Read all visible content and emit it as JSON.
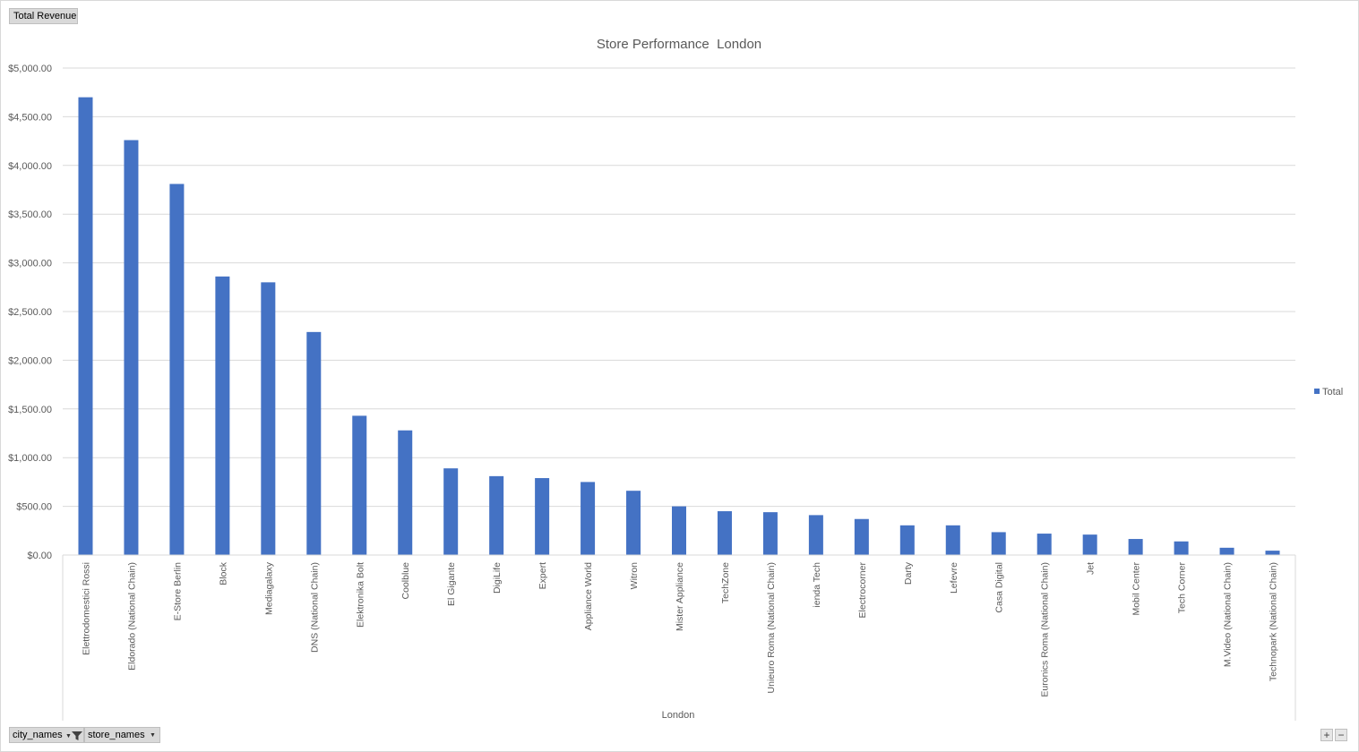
{
  "pivot": {
    "value_field": "Total Revenue",
    "filter_fields": [
      "city_names",
      "store_names"
    ]
  },
  "zoom": {
    "in_label": "+",
    "out_label": "−"
  },
  "colors": {
    "bar": "#4472c4",
    "grid": "#d9d9d9",
    "text": "#595959"
  },
  "chart_data": {
    "type": "bar",
    "title": "Store Performance  London",
    "xlabel": "London",
    "ylabel": "",
    "ylim": [
      0,
      5000
    ],
    "yticks": [
      "$0.00",
      "$500.00",
      "$1,000.00",
      "$1,500.00",
      "$2,000.00",
      "$2,500.00",
      "$3,000.00",
      "$3,500.00",
      "$4,000.00",
      "$4,500.00",
      "$5,000.00"
    ],
    "grid": true,
    "legend_position": "right",
    "categories": [
      "Elettrodomestici Rossi",
      "Eldorado (National Chain)",
      "E-Store Berlin",
      "Block",
      "Mediagalaxy",
      "DNS (National Chain)",
      "Elektronika Bolt",
      "Coolblue",
      "El Gigante",
      "DigiLife",
      "Expert",
      "Appliance World",
      "Witron",
      "Mister Appliance",
      "TechZone",
      "Unieuro Roma (National Chain)",
      "ienda Tech",
      "Electrocorner",
      "Darty",
      "Lefevre",
      "Casa Digital",
      "Euronics Roma (National Chain)",
      "Jet",
      "Mobil Center",
      "Tech Corner",
      "M.Video (National Chain)",
      "Technopark (National Chain)"
    ],
    "series": [
      {
        "name": "Total",
        "values": [
          4700,
          4260,
          3810,
          2860,
          2800,
          2290,
          1430,
          1280,
          890,
          810,
          790,
          750,
          660,
          500,
          450,
          440,
          410,
          370,
          305,
          305,
          235,
          220,
          210,
          165,
          140,
          75,
          45
        ]
      }
    ]
  }
}
